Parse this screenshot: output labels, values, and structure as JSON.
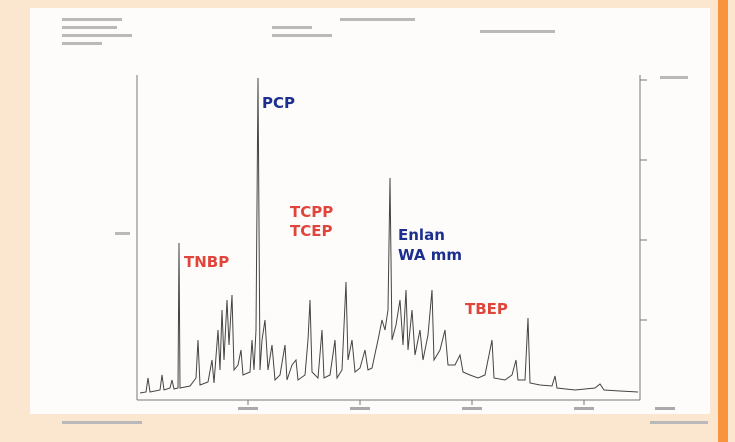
{
  "annotations": {
    "pcp": "PCP",
    "tcpp": "TCPP",
    "tcep": "TCEP",
    "enlan": "Enlan",
    "wa": "WA mm",
    "tnbp": "TNBP",
    "tbep": "TBEP"
  }
}
